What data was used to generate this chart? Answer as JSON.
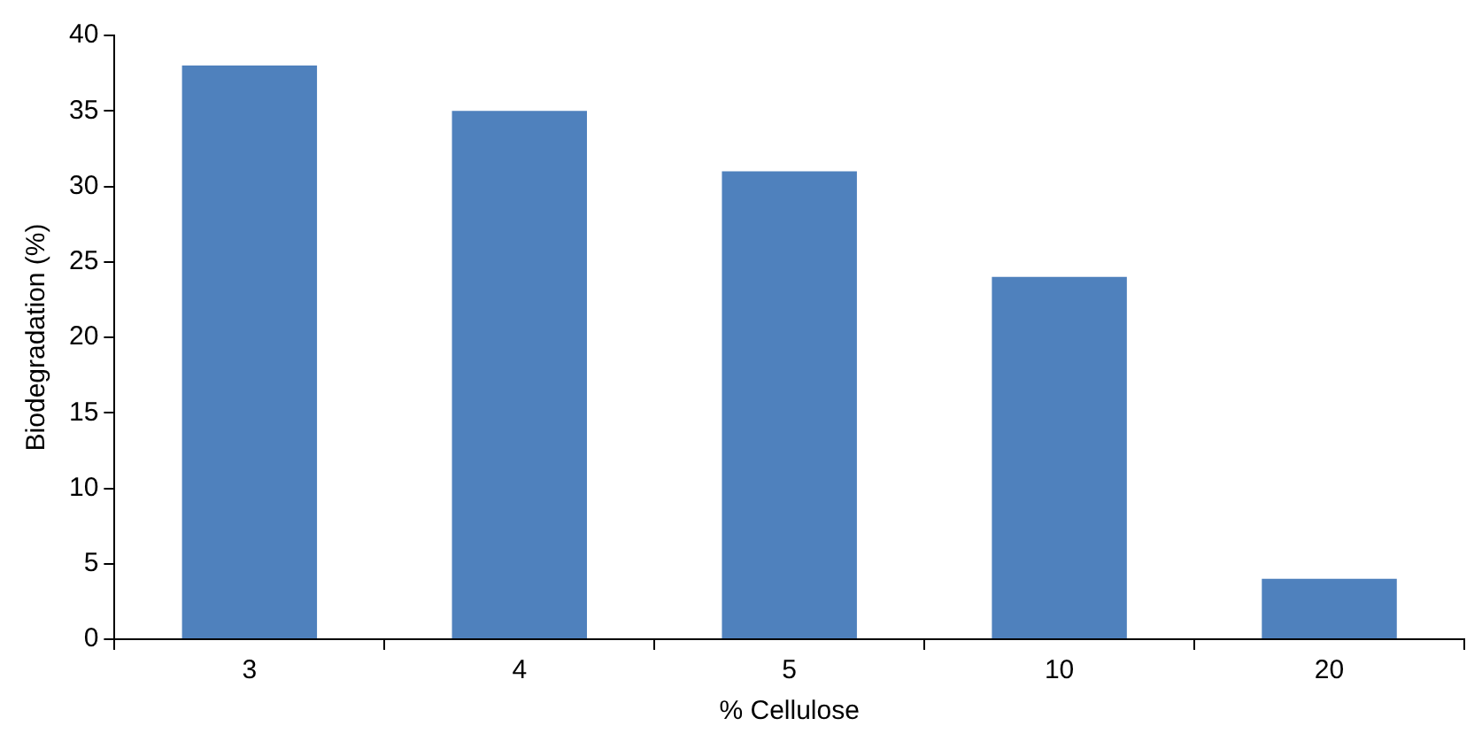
{
  "chart_data": {
    "type": "bar",
    "xlabel": "% Cellulose",
    "ylabel": "Biodegradation (%)",
    "categories": [
      "3",
      "4",
      "5",
      "10",
      "20"
    ],
    "values": [
      38,
      35,
      31,
      24,
      4
    ],
    "color": "#4f81bd",
    "ylim": [
      0,
      40
    ],
    "yticks": [
      0,
      5,
      10,
      15,
      20,
      25,
      30,
      35,
      40
    ],
    "grid": false,
    "legend": false
  }
}
